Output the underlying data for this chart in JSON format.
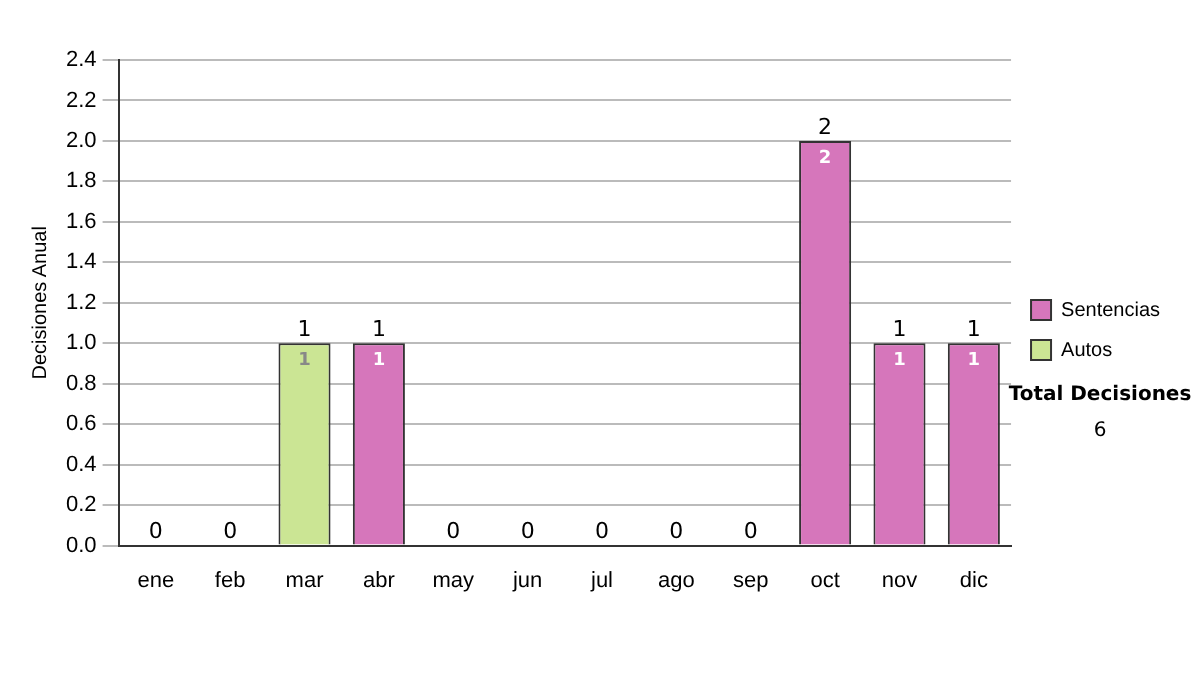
{
  "chart_data": {
    "type": "bar",
    "stacked": true,
    "ylabel": "Decisiones Anual",
    "categories": [
      "ene",
      "feb",
      "mar",
      "abr",
      "may",
      "jun",
      "jul",
      "ago",
      "sep",
      "oct",
      "nov",
      "dic"
    ],
    "series": [
      {
        "name": "Sentencias",
        "color": "#d676bb",
        "values": [
          0,
          0,
          0,
          1,
          0,
          0,
          0,
          0,
          0,
          2,
          1,
          1
        ],
        "value_labels": [
          null,
          null,
          null,
          "1",
          null,
          null,
          null,
          null,
          null,
          "2",
          "1",
          "1"
        ]
      },
      {
        "name": "Autos",
        "color": "#cbe594",
        "values": [
          0,
          0,
          1,
          0,
          0,
          0,
          0,
          0,
          0,
          0,
          0,
          0
        ],
        "value_labels": [
          null,
          null,
          "1",
          null,
          null,
          null,
          null,
          null,
          null,
          null,
          null,
          null
        ]
      }
    ],
    "totals": [
      "0",
      "0",
      "1",
      "1",
      "0",
      "0",
      "0",
      "0",
      "0",
      "2",
      "1",
      "1"
    ],
    "ylim": [
      0,
      2.4
    ],
    "yticks": [
      {
        "value": 0,
        "label": "0.0"
      },
      {
        "value": 0.2,
        "label": "0.2"
      },
      {
        "value": 0.4,
        "label": "0.4"
      },
      {
        "value": 0.6,
        "label": "0.6"
      },
      {
        "value": 0.8,
        "label": "0.8"
      },
      {
        "value": 1,
        "label": "1.0"
      },
      {
        "value": 1.2,
        "label": "1.2"
      },
      {
        "value": 1.4,
        "label": "1.4"
      },
      {
        "value": 1.6,
        "label": "1.6"
      },
      {
        "value": 1.8,
        "label": "1.8"
      },
      {
        "value": 2,
        "label": "2.0"
      },
      {
        "value": 2.2,
        "label": "2.2"
      },
      {
        "value": 2.4,
        "label": "2.4"
      }
    ],
    "grid": "y",
    "legend": "right",
    "annotations": [
      "Total Decisiones",
      "6"
    ]
  }
}
